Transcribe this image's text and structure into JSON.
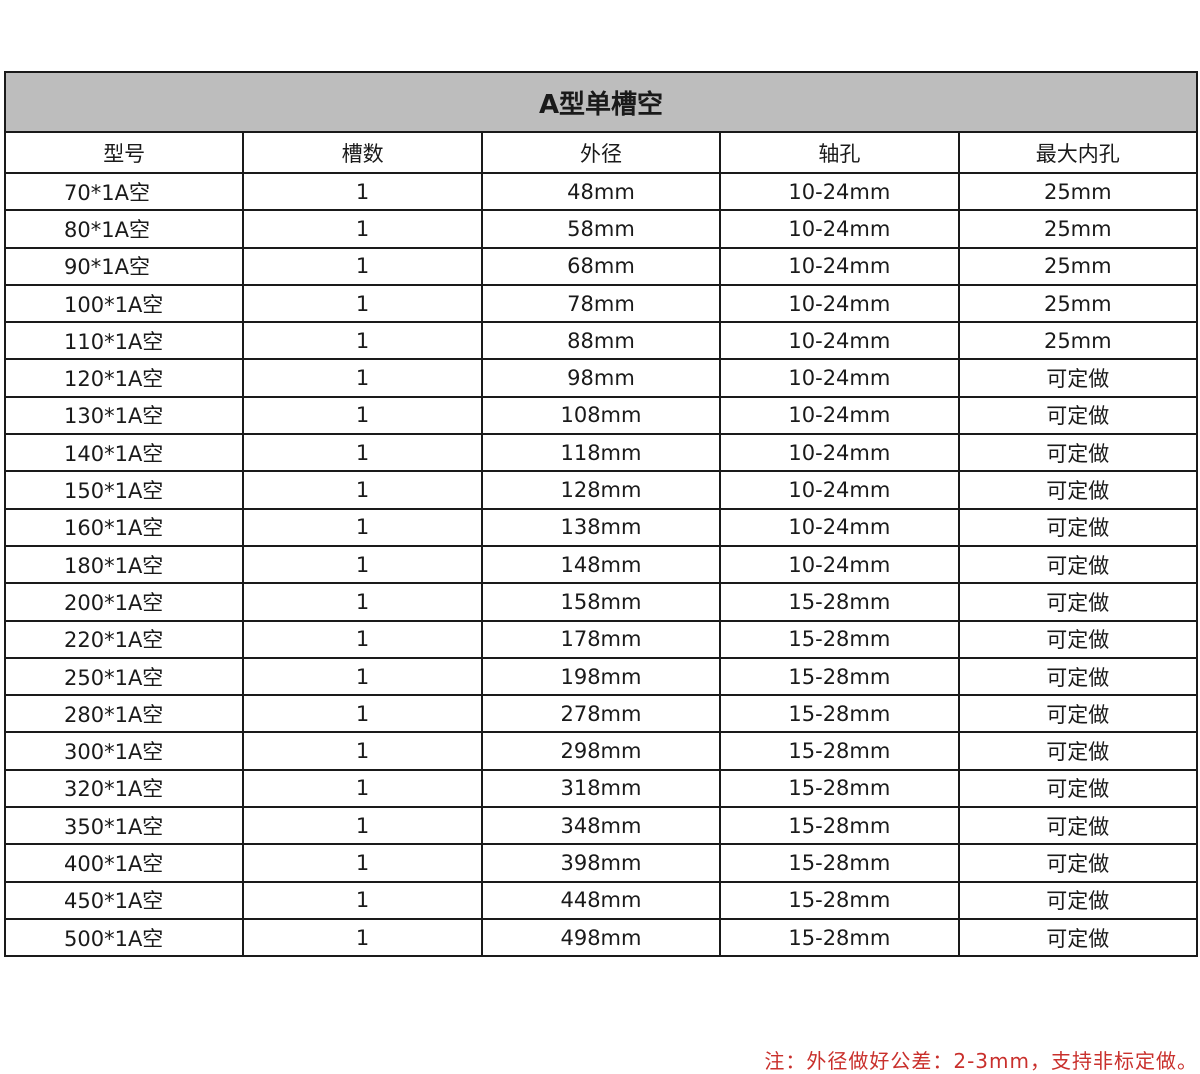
{
  "title": "A型单槽空",
  "columns": [
    "型号",
    "槽数",
    "外径",
    "轴孔",
    "最大内孔"
  ],
  "rows": [
    [
      "70*1A空",
      "1",
      "48mm",
      "10-24mm",
      "25mm"
    ],
    [
      "80*1A空",
      "1",
      "58mm",
      "10-24mm",
      "25mm"
    ],
    [
      "90*1A空",
      "1",
      "68mm",
      "10-24mm",
      "25mm"
    ],
    [
      "100*1A空",
      "1",
      "78mm",
      "10-24mm",
      "25mm"
    ],
    [
      "110*1A空",
      "1",
      "88mm",
      "10-24mm",
      "25mm"
    ],
    [
      "120*1A空",
      "1",
      "98mm",
      "10-24mm",
      "可定做"
    ],
    [
      "130*1A空",
      "1",
      "108mm",
      "10-24mm",
      "可定做"
    ],
    [
      "140*1A空",
      "1",
      "118mm",
      "10-24mm",
      "可定做"
    ],
    [
      "150*1A空",
      "1",
      "128mm",
      "10-24mm",
      "可定做"
    ],
    [
      "160*1A空",
      "1",
      "138mm",
      "10-24mm",
      "可定做"
    ],
    [
      "180*1A空",
      "1",
      "148mm",
      "10-24mm",
      "可定做"
    ],
    [
      "200*1A空",
      "1",
      "158mm",
      "15-28mm",
      "可定做"
    ],
    [
      "220*1A空",
      "1",
      "178mm",
      "15-28mm",
      "可定做"
    ],
    [
      "250*1A空",
      "1",
      "198mm",
      "15-28mm",
      "可定做"
    ],
    [
      "280*1A空",
      "1",
      "278mm",
      "15-28mm",
      "可定做"
    ],
    [
      "300*1A空",
      "1",
      "298mm",
      "15-28mm",
      "可定做"
    ],
    [
      "320*1A空",
      "1",
      "318mm",
      "15-28mm",
      "可定做"
    ],
    [
      "350*1A空",
      "1",
      "348mm",
      "15-28mm",
      "可定做"
    ],
    [
      "400*1A空",
      "1",
      "398mm",
      "15-28mm",
      "可定做"
    ],
    [
      "450*1A空",
      "1",
      "448mm",
      "15-28mm",
      "可定做"
    ],
    [
      "500*1A空",
      "1",
      "498mm",
      "15-28mm",
      "可定做"
    ]
  ],
  "note": "注：外径做好公差：2-3mm，支持非标定做。",
  "colors": {
    "title_bg": "#bdbdbd",
    "note": "#c9302c"
  }
}
